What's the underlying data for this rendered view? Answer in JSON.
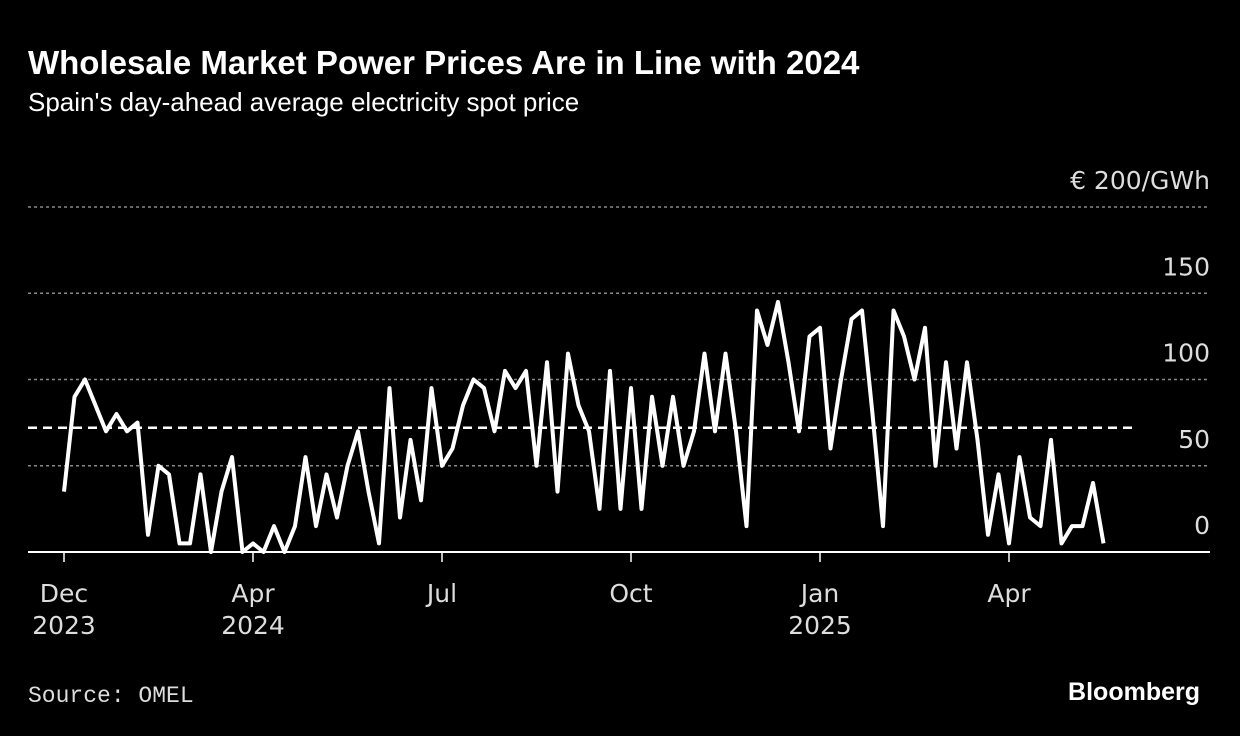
{
  "chart_data": {
    "type": "line",
    "title": "Wholesale Market Power Prices Are in Line with 2024",
    "subtitle": "Spain's day-ahead average electricity spot price",
    "source": "Source: OMEL",
    "brand": "Bloomberg",
    "categories": [
      "Dec 2023",
      null,
      null,
      null,
      null,
      null,
      null,
      null,
      null,
      null,
      null,
      null,
      null,
      null,
      null,
      null,
      null,
      null,
      "Apr 2024",
      null,
      null,
      null,
      null,
      null,
      null,
      null,
      null,
      null,
      null,
      null,
      null,
      null,
      null,
      null,
      null,
      null,
      "Jul",
      null,
      null,
      null,
      null,
      null,
      null,
      null,
      null,
      null,
      null,
      null,
      null,
      null,
      null,
      null,
      null,
      null,
      "Oct",
      null,
      null,
      null,
      null,
      null,
      null,
      null,
      null,
      null,
      null,
      null,
      null,
      null,
      null,
      null,
      null,
      null,
      "Jan 2025",
      null,
      null,
      null,
      null,
      null,
      null,
      null,
      null,
      null,
      null,
      null,
      null,
      null,
      null,
      null,
      null,
      null,
      "Apr",
      null,
      null,
      null,
      null,
      null,
      null,
      null,
      null,
      null
    ],
    "series": [
      {
        "color": "#ffffff",
        "values": [
          35,
          90,
          100,
          85,
          70,
          80,
          70,
          75,
          10,
          50,
          45,
          5,
          5,
          45,
          0,
          35,
          55,
          0,
          5,
          0,
          15,
          0,
          15,
          55,
          15,
          45,
          20,
          50,
          70,
          35,
          5,
          95,
          20,
          65,
          30,
          95,
          50,
          60,
          85,
          100,
          95,
          70,
          105,
          95,
          105,
          50,
          110,
          35,
          115,
          85,
          70,
          25,
          105,
          25,
          95,
          25,
          90,
          50,
          90,
          50,
          70,
          115,
          70,
          115,
          70,
          15,
          140,
          120,
          145,
          110,
          70,
          125,
          130,
          60,
          100,
          135,
          140,
          80,
          15,
          140,
          125,
          100,
          130,
          50,
          110,
          60,
          110,
          65,
          10,
          45,
          5,
          55,
          20,
          15,
          65,
          5,
          15,
          15,
          40,
          5
        ]
      }
    ],
    "reference_line": {
      "value": 72
    },
    "ylim": [
      0,
      200
    ],
    "yticks": [
      0,
      50,
      100,
      150,
      {
        "value": 200,
        "label": "€ 200/GWh"
      }
    ],
    "grid": true
  }
}
